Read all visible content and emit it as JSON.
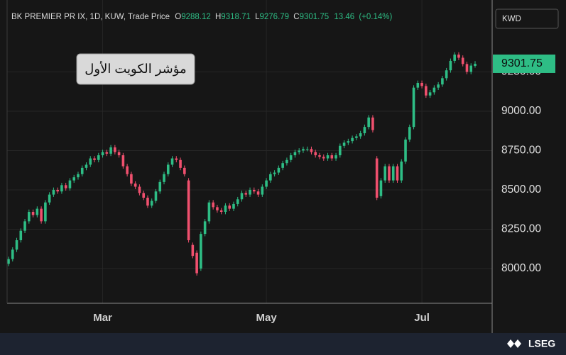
{
  "header": {
    "symbol": "BK PREMIER PR IX, 1D, KUW, Trade Price",
    "o_label": "O",
    "open": 9288.12,
    "h_label": "H",
    "high": 9318.71,
    "l_label": "L",
    "low": 9276.79,
    "c_label": "C",
    "close": 9301.75,
    "change": 13.46,
    "change_pct": "(+0.14%)"
  },
  "footer": {
    "logo": "LSEG"
  },
  "chart_data": {
    "type": "candlestick",
    "currency": "KWD",
    "annotation": "مؤشر الكويت الأول",
    "last_price": 9301.75,
    "up_color": "#2ebd85",
    "down_color": "#f0506e",
    "grid": true,
    "ylim": [
      7779,
      9662
    ],
    "yticks": [
      {
        "value": 8000,
        "label": "8000.00"
      },
      {
        "value": 8250,
        "label": "8250.00"
      },
      {
        "value": 8500,
        "label": "8500.00"
      },
      {
        "value": 8750,
        "label": "8750.00"
      },
      {
        "value": 9000,
        "label": "9000.00"
      },
      {
        "value": 9250,
        "label": "9250.00"
      }
    ],
    "categories": [
      null,
      null,
      null,
      null,
      null,
      null,
      null,
      null,
      null,
      null,
      null,
      null,
      null,
      null,
      null,
      null,
      null,
      null,
      null,
      null,
      null,
      null,
      null,
      "Mar",
      null,
      null,
      null,
      null,
      null,
      null,
      null,
      null,
      null,
      null,
      null,
      null,
      null,
      null,
      null,
      null,
      null,
      null,
      null,
      null,
      null,
      null,
      null,
      null,
      null,
      null,
      null,
      null,
      null,
      null,
      null,
      null,
      null,
      null,
      null,
      null,
      null,
      null,
      null,
      "May",
      null,
      null,
      null,
      null,
      null,
      null,
      null,
      null,
      null,
      null,
      null,
      null,
      null,
      null,
      null,
      null,
      null,
      null,
      null,
      null,
      null,
      null,
      null,
      null,
      null,
      null,
      null,
      null,
      null,
      null,
      null,
      null,
      null,
      null,
      null,
      null,
      null,
      "Jul",
      null,
      null,
      null,
      null,
      null,
      null,
      null,
      null,
      null,
      null,
      null,
      null,
      null
    ],
    "open": [
      8030,
      8060,
      8120,
      8180,
      8240,
      8300,
      8360,
      8340,
      8380,
      8300,
      8420,
      8470,
      8500,
      8490,
      8530,
      8510,
      8560,
      8580,
      8600,
      8640,
      8660,
      8700,
      8690,
      8720,
      8740,
      8730,
      8770,
      8740,
      8720,
      8650,
      8600,
      8540,
      8520,
      8480,
      8450,
      8400,
      8430,
      8490,
      8550,
      8600,
      8660,
      8700,
      8690,
      8640,
      8560,
      8150,
      8100,
      8000,
      8220,
      8300,
      8420,
      8390,
      8370,
      8360,
      8400,
      8380,
      8410,
      8440,
      8480,
      8470,
      8500,
      8490,
      8470,
      8520,
      8560,
      8600,
      8610,
      8640,
      8670,
      8690,
      8720,
      8740,
      8750,
      8760,
      8760,
      8740,
      8720,
      8710,
      8700,
      8720,
      8700,
      8720,
      8780,
      8800,
      8810,
      8830,
      8840,
      8860,
      8900,
      8960,
      8700,
      8460,
      8560,
      8650,
      8560,
      8650,
      8560,
      8680,
      8820,
      8900,
      9150,
      9180,
      9160,
      9100,
      9120,
      9150,
      9170,
      9210,
      9260,
      9320,
      9360,
      9340,
      9300,
      9250,
      9288.12
    ],
    "high": [
      8075,
      8135,
      8195,
      8255,
      8315,
      8375,
      8375,
      8395,
      8395,
      8435,
      8485,
      8515,
      8515,
      8545,
      8545,
      8575,
      8595,
      8615,
      8655,
      8675,
      8715,
      8715,
      8735,
      8755,
      8755,
      8785,
      8785,
      8755,
      8735,
      8665,
      8615,
      8555,
      8535,
      8495,
      8465,
      8445,
      8505,
      8565,
      8615,
      8675,
      8715,
      8715,
      8705,
      8655,
      8575,
      8165,
      8115,
      8235,
      8315,
      8435,
      8435,
      8405,
      8385,
      8415,
      8415,
      8425,
      8455,
      8495,
      8495,
      8515,
      8515,
      8505,
      8535,
      8575,
      8615,
      8625,
      8655,
      8685,
      8705,
      8735,
      8755,
      8765,
      8775,
      8775,
      8775,
      8755,
      8735,
      8725,
      8735,
      8735,
      8735,
      8795,
      8815,
      8825,
      8845,
      8855,
      8875,
      8915,
      8975,
      8975,
      8715,
      8575,
      8665,
      8665,
      8665,
      8665,
      8695,
      8835,
      8915,
      9165,
      9195,
      9195,
      9175,
      9135,
      9165,
      9185,
      9225,
      9275,
      9335,
      9375,
      9375,
      9355,
      9315,
      9305,
      9318.71
    ],
    "low": [
      8015,
      8045,
      8105,
      8165,
      8225,
      8285,
      8325,
      8325,
      8285,
      8285,
      8405,
      8455,
      8475,
      8475,
      8495,
      8495,
      8545,
      8565,
      8585,
      8625,
      8645,
      8675,
      8675,
      8705,
      8715,
      8715,
      8725,
      8705,
      8635,
      8585,
      8525,
      8505,
      8465,
      8435,
      8385,
      8385,
      8415,
      8475,
      8535,
      8585,
      8645,
      8675,
      8625,
      8585,
      8165,
      8065,
      7955,
      7985,
      8205,
      8285,
      8375,
      8355,
      8345,
      8345,
      8365,
      8365,
      8395,
      8425,
      8455,
      8455,
      8475,
      8455,
      8455,
      8505,
      8545,
      8585,
      8595,
      8625,
      8655,
      8675,
      8705,
      8725,
      8735,
      8745,
      8725,
      8705,
      8695,
      8685,
      8685,
      8685,
      8685,
      8705,
      8765,
      8785,
      8795,
      8815,
      8825,
      8845,
      8885,
      8865,
      8435,
      8445,
      8545,
      8545,
      8545,
      8545,
      8545,
      8665,
      8805,
      8885,
      9135,
      9145,
      9085,
      9085,
      9105,
      9135,
      9155,
      9195,
      9245,
      9305,
      9325,
      9285,
      9235,
      9235,
      9276.79
    ],
    "close": [
      8060,
      8120,
      8180,
      8240,
      8300,
      8360,
      8340,
      8380,
      8300,
      8420,
      8470,
      8500,
      8490,
      8530,
      8510,
      8560,
      8580,
      8600,
      8640,
      8660,
      8700,
      8690,
      8720,
      8740,
      8730,
      8770,
      8740,
      8720,
      8650,
      8600,
      8540,
      8520,
      8480,
      8450,
      8400,
      8430,
      8490,
      8550,
      8600,
      8660,
      8700,
      8690,
      8640,
      8600,
      8180,
      8080,
      7970,
      8220,
      8300,
      8420,
      8390,
      8370,
      8360,
      8400,
      8380,
      8410,
      8440,
      8480,
      8470,
      8500,
      8490,
      8470,
      8520,
      8560,
      8600,
      8610,
      8640,
      8670,
      8690,
      8720,
      8740,
      8750,
      8760,
      8760,
      8740,
      8720,
      8710,
      8700,
      8720,
      8700,
      8720,
      8780,
      8800,
      8810,
      8830,
      8840,
      8860,
      8900,
      8960,
      8880,
      8450,
      8560,
      8650,
      8560,
      8650,
      8560,
      8680,
      8820,
      8900,
      9150,
      9180,
      9160,
      9100,
      9120,
      9150,
      9170,
      9210,
      9260,
      9320,
      9360,
      9340,
      9300,
      9250,
      9290,
      9301.75
    ]
  }
}
